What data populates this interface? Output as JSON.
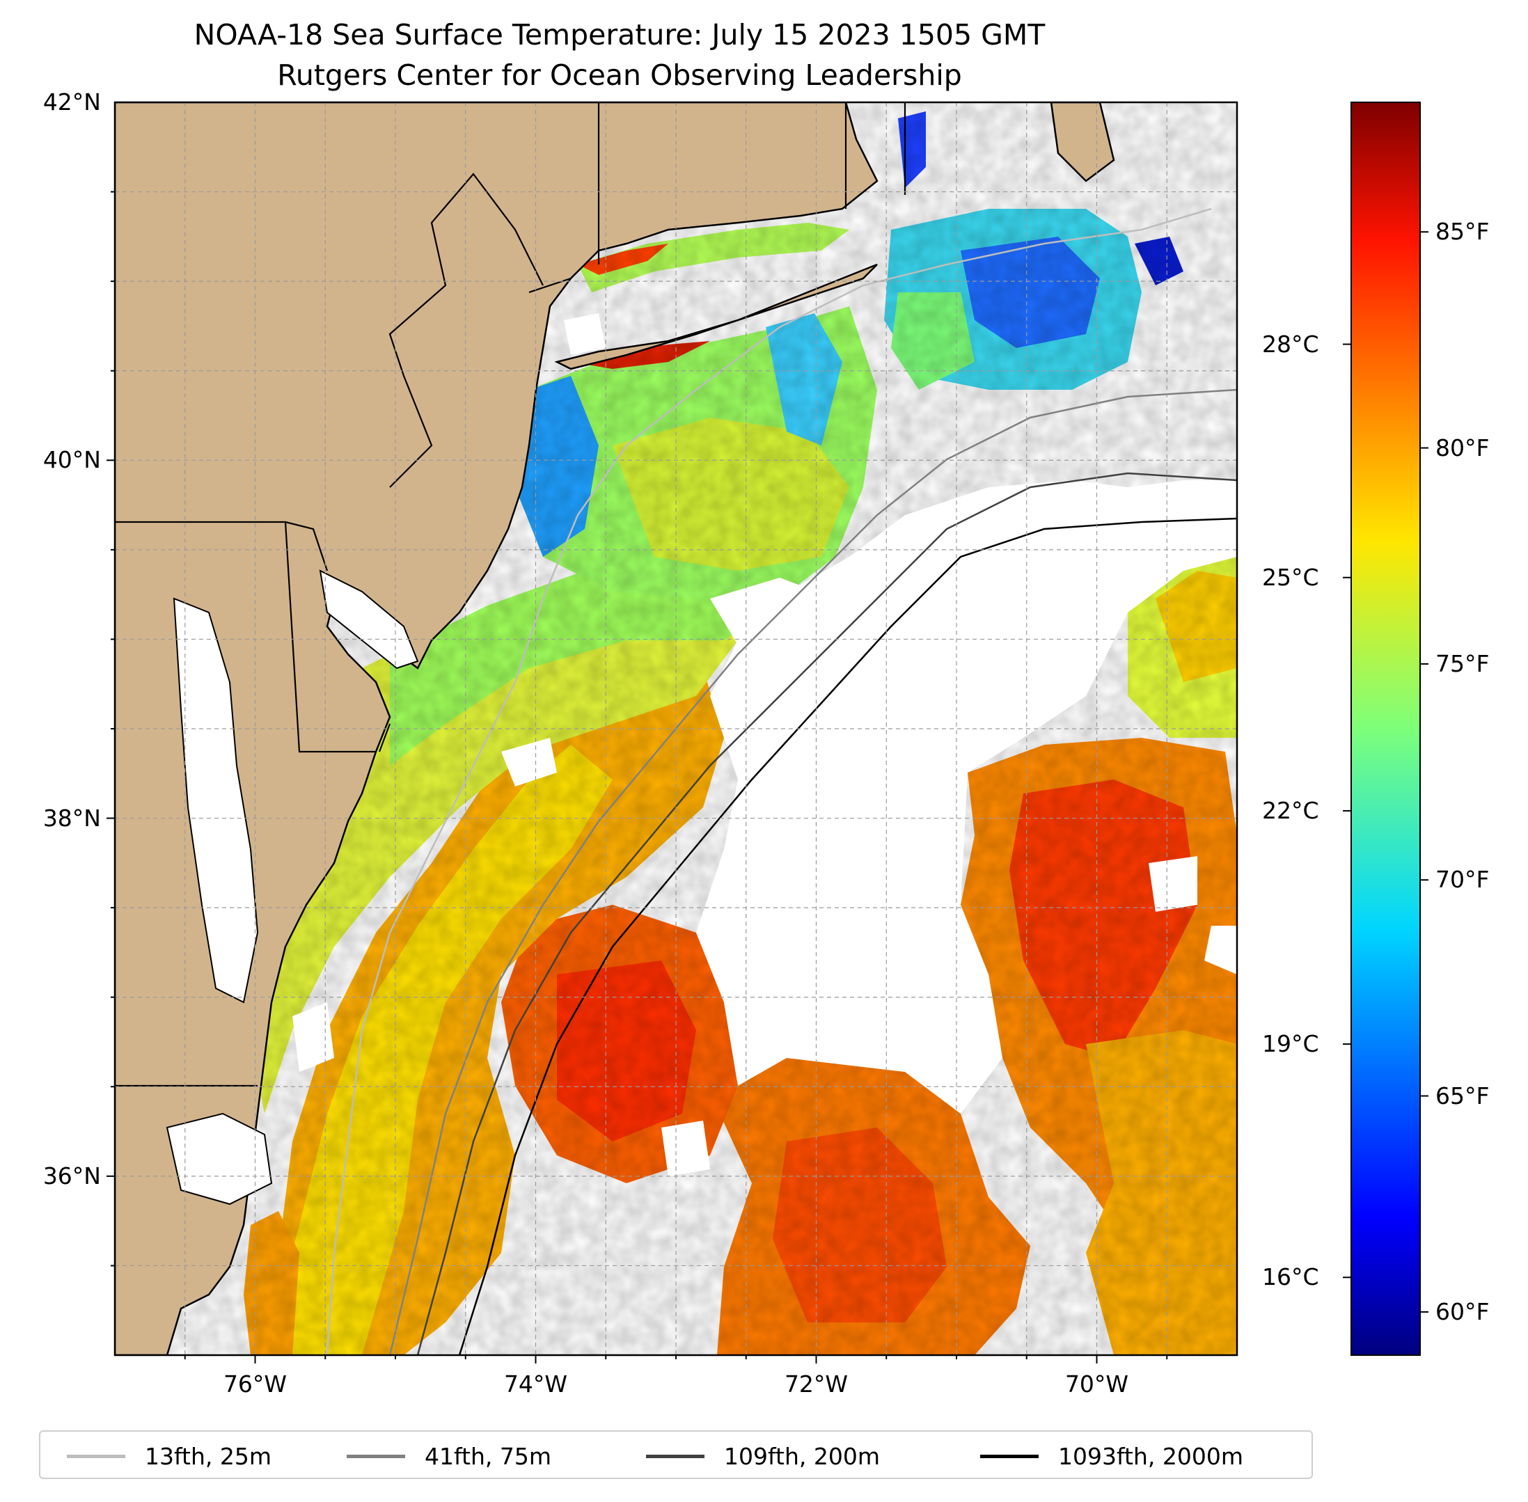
{
  "title": "NOAA-18 Sea Surface Temperature: July 15 2023 1505 GMT",
  "subtitle": "Rutgers Center for Ocean Observing Leadership",
  "map": {
    "extent": {
      "lon_min": -77,
      "lon_max": -69,
      "lat_min": 35,
      "lat_max": 42
    },
    "land_color": "#D2B48C",
    "lat_ticks": [
      {
        "value": 42,
        "label": "42°N"
      },
      {
        "value": 40,
        "label": "40°N"
      },
      {
        "value": 38,
        "label": "38°N"
      },
      {
        "value": 36,
        "label": "36°N"
      }
    ],
    "lon_ticks": [
      {
        "value": -76,
        "label": "76°W"
      },
      {
        "value": -74,
        "label": "74°W"
      },
      {
        "value": -72,
        "label": "72°W"
      },
      {
        "value": -70,
        "label": "70°W"
      }
    ]
  },
  "colorbar": {
    "colormap": "jet",
    "range_f": [
      59,
      88
    ],
    "fahrenheit_ticks": [
      {
        "value": 60,
        "label": "60°F"
      },
      {
        "value": 65,
        "label": "65°F"
      },
      {
        "value": 70,
        "label": "70°F"
      },
      {
        "value": 75,
        "label": "75°F"
      },
      {
        "value": 80,
        "label": "80°F"
      },
      {
        "value": 85,
        "label": "85°F"
      }
    ],
    "celsius_ticks": [
      {
        "value": 16,
        "label": "16°C"
      },
      {
        "value": 19,
        "label": "19°C"
      },
      {
        "value": 22,
        "label": "22°C"
      },
      {
        "value": 25,
        "label": "25°C"
      },
      {
        "value": 28,
        "label": "28°C"
      }
    ]
  },
  "legend": {
    "items": [
      {
        "label": "13fth, 25m",
        "color": "#bdbdbd"
      },
      {
        "label": "41fth, 75m",
        "color": "#808080"
      },
      {
        "label": "109fth, 200m",
        "color": "#404040"
      },
      {
        "label": "1093fth, 2000m",
        "color": "#000000"
      }
    ]
  }
}
